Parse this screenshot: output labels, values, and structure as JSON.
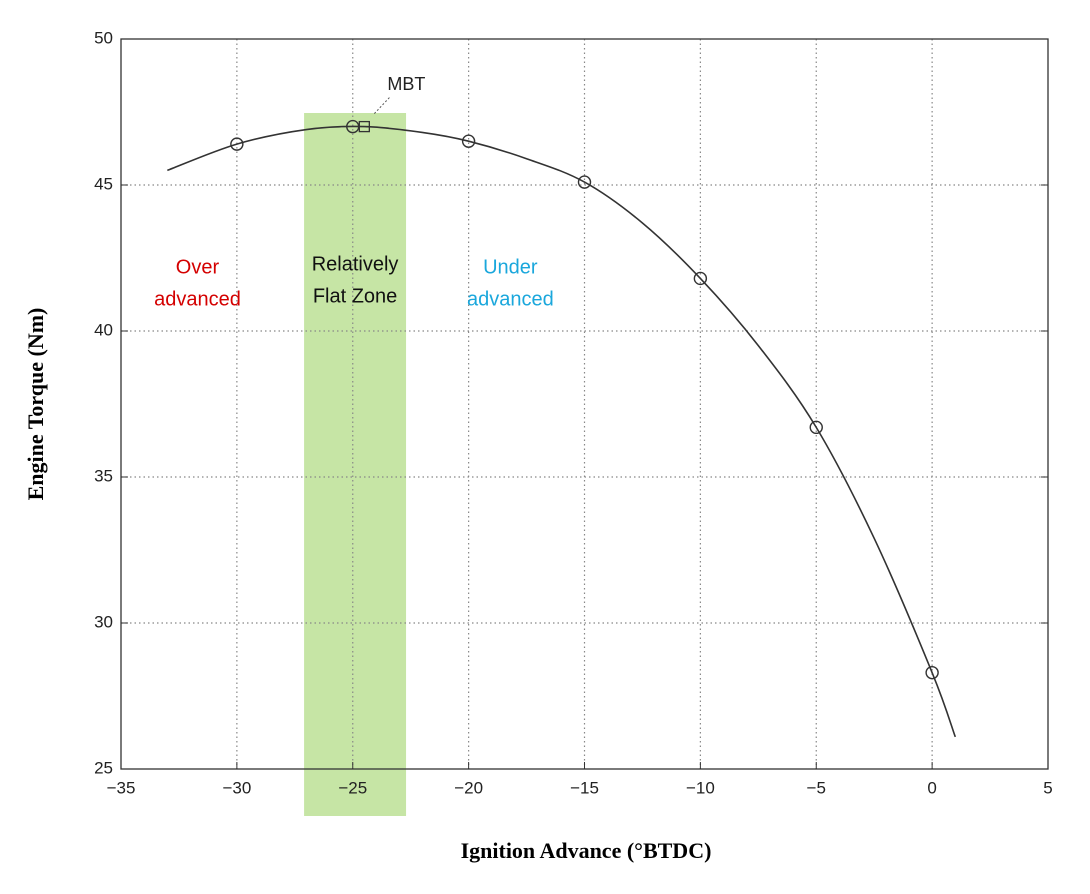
{
  "chart_data": {
    "type": "line",
    "x_label": "Ignition Advance (°BTDC)",
    "y_label": "Engine Torque (Nm)",
    "xlim": [
      -35,
      5
    ],
    "ylim": [
      25,
      50
    ],
    "xticks": [
      {
        "value": -35,
        "label": "−35"
      },
      {
        "value": -30,
        "label": "−30"
      },
      {
        "value": -25,
        "label": "−25"
      },
      {
        "value": -20,
        "label": "−20"
      },
      {
        "value": -15,
        "label": "−15"
      },
      {
        "value": -10,
        "label": "−10"
      },
      {
        "value": -5,
        "label": "−5"
      },
      0,
      5
    ],
    "yticks": [
      25,
      30,
      35,
      40,
      45,
      50
    ],
    "grid": true,
    "series": [
      {
        "color": "#333333",
        "marker": "circle",
        "x": [
          -30,
          -25,
          -20,
          -15,
          -10,
          -5,
          0
        ],
        "values": [
          46.4,
          47.0,
          46.5,
          45.1,
          41.8,
          36.7,
          28.3
        ]
      },
      {
        "color": "#333333",
        "marker": "none",
        "x": [
          -33,
          -30,
          -27,
          -24.5,
          -22,
          -20,
          -17.5,
          -15,
          -12.5,
          -10,
          -7.5,
          -5,
          -2.5,
          0,
          1
        ],
        "values": [
          45.5,
          46.4,
          46.9,
          47.0,
          46.8,
          46.5,
          45.9,
          45.1,
          43.7,
          41.8,
          39.5,
          36.7,
          32.9,
          28.3,
          26.1
        ]
      }
    ],
    "mbt": {
      "label": "MBT",
      "x": -24.5,
      "y": 47.0
    },
    "band": {
      "x": [
        -27.1,
        -22.7
      ],
      "color": "#c6e5a5",
      "lines": [
        "Relatively",
        "Flat Zone"
      ],
      "text_color": "#111111"
    },
    "annotations": [
      {
        "lines": [
          "Over",
          "advanced"
        ],
        "x": -31.7,
        "color": "#d40000"
      },
      {
        "lines": [
          "Under",
          "advanced"
        ],
        "x": -18.2,
        "color": "#1aa7dc"
      }
    ]
  }
}
